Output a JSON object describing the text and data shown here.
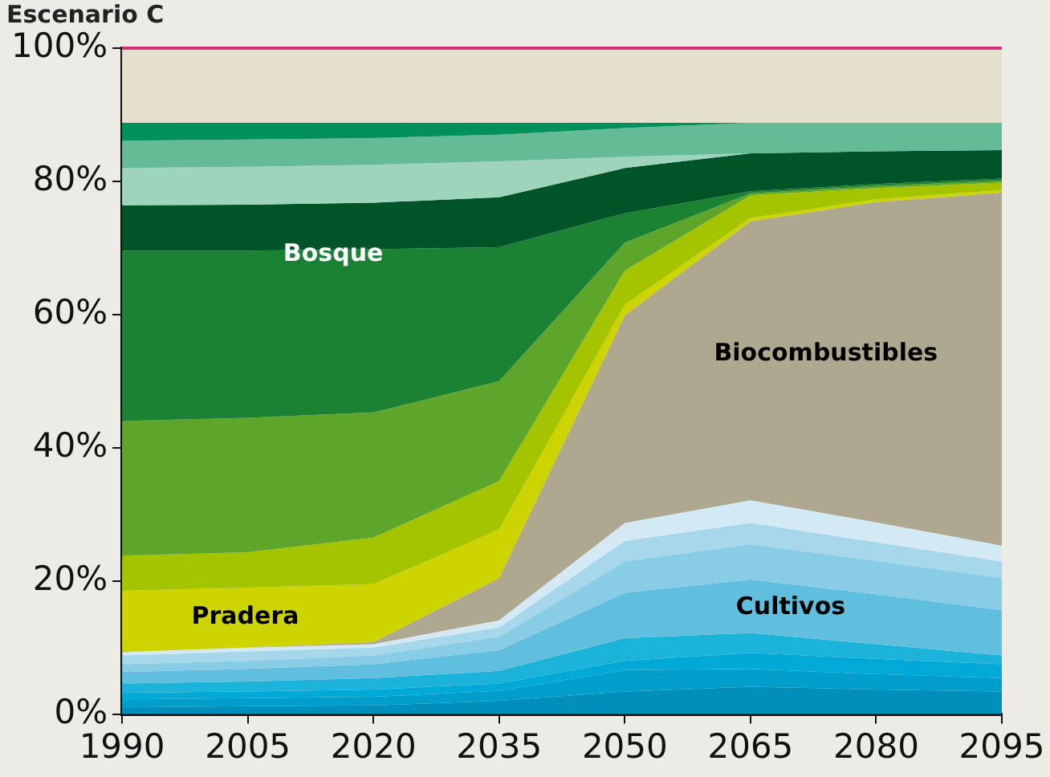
{
  "chart_data": {
    "type": "area",
    "title": "Escenario C",
    "stacked": true,
    "x": [
      1990,
      2005,
      2020,
      2035,
      2050,
      2065,
      2080,
      2095
    ],
    "xlim": [
      1990,
      2095
    ],
    "xticks": [
      1990,
      2005,
      2020,
      2035,
      2050,
      2065,
      2080,
      2095
    ],
    "ylim": [
      0,
      100
    ],
    "yticks": [
      {
        "value": 0,
        "label": "0%"
      },
      {
        "value": 20,
        "label": "20%"
      },
      {
        "value": 40,
        "label": "40%"
      },
      {
        "value": 60,
        "label": "60%"
      },
      {
        "value": 80,
        "label": "80%"
      },
      {
        "value": 100,
        "label": "100%"
      }
    ],
    "grid": false,
    "legend": false,
    "series": [
      {
        "color": "#008fba",
        "values": [
          1,
          1.2,
          1.3,
          2,
          3.4,
          4.1,
          3.7,
          3.4
        ]
      },
      {
        "color": "#009ecb",
        "values": [
          1.2,
          1.2,
          1.3,
          1.5,
          3.2,
          2.7,
          2.3,
          2
        ]
      },
      {
        "color": "#00a9d6",
        "values": [
          1,
          1,
          1.1,
          1.1,
          1.4,
          2.4,
          2.3,
          2.1
        ]
      },
      {
        "color": "#1bb3da",
        "values": [
          1.4,
          1.5,
          1.7,
          1.9,
          3.4,
          3,
          2.2,
          1.3
        ]
      },
      {
        "color": "#60bfdf",
        "values": [
          1.7,
          1.9,
          2.1,
          3.1,
          6.8,
          8,
          7.5,
          6.8
        ]
      },
      {
        "color": "#88cce6",
        "values": [
          1.2,
          1.2,
          1.3,
          2,
          4.7,
          5.3,
          5,
          4.8
        ]
      },
      {
        "color": "#a6d7eb",
        "values": [
          1.3,
          1.4,
          1.2,
          1.4,
          3.1,
          3.2,
          2.8,
          2.5
        ]
      },
      {
        "color": "#d3eaf4",
        "values": [
          0.5,
          0.6,
          0.5,
          1.1,
          2.7,
          3.4,
          3,
          2.4
        ]
      },
      {
        "color": "#aea891",
        "values": [
          0,
          0,
          0.3,
          6.3,
          31.2,
          41.9,
          48.1,
          53
        ]
      },
      {
        "color": "#cdd400",
        "values": [
          9.2,
          9,
          8.7,
          7.3,
          1.6,
          0.5,
          0.4,
          0.4
        ]
      },
      {
        "color": "#a5c400",
        "values": [
          5.3,
          5.3,
          7,
          7.3,
          5.1,
          3.4,
          1.7,
          1.1
        ]
      },
      {
        "color": "#5ea52c",
        "values": [
          20.2,
          20.2,
          18.8,
          15,
          4.2,
          0.3,
          0.3,
          0.3
        ]
      },
      {
        "color": "#1a8232",
        "values": [
          25.6,
          25.1,
          24.5,
          20.1,
          4.4,
          0.3,
          0.3,
          0.3
        ]
      },
      {
        "color": "#005427",
        "values": [
          6.8,
          6.9,
          7,
          7.5,
          6.8,
          5.7,
          4.9,
          4.3
        ]
      },
      {
        "color": "#9fd4bc",
        "values": [
          5.6,
          5.7,
          5.7,
          5.4,
          1.7,
          0,
          0,
          0
        ]
      },
      {
        "color": "#64bb96",
        "values": [
          4.1,
          4.1,
          4,
          4,
          4.3,
          4.6,
          4.3,
          4.1
        ]
      },
      {
        "color": "#00915a",
        "values": [
          2.7,
          2.5,
          2.3,
          1.8,
          0.8,
          0,
          0,
          0
        ]
      },
      {
        "color": "#e5dfcd",
        "values": [
          11.2,
          11.2,
          11.2,
          11.2,
          11.2,
          11.2,
          11.2,
          11.2
        ]
      }
    ],
    "ref_lines": [
      {
        "axis": "y",
        "value": 100,
        "color": "#d6307a"
      }
    ],
    "annotations": [
      "Bosque",
      "Pradera",
      "Biocombustibles",
      "Cultivos"
    ]
  }
}
